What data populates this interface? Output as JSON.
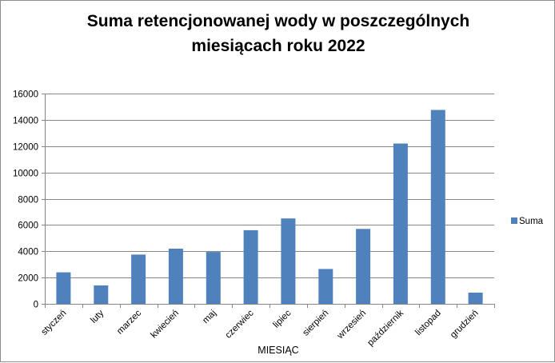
{
  "chart_data": {
    "type": "bar",
    "title": "Suma retencjonowanej wody w poszczególnych miesiącach roku 2022",
    "title_lines": [
      "Suma retencjonowanej wody w poszczególnych",
      "miesiącach roku 2022"
    ],
    "xlabel": "MIESIĄC",
    "ylabel": "",
    "categories": [
      "styczeń",
      "luty",
      "marzec",
      "kwiecień",
      "maj",
      "czerwiec",
      "lipiec",
      "sierpień",
      "wrzesień",
      "październik",
      "listopad",
      "grudzień"
    ],
    "series": [
      {
        "name": "Suma",
        "color": "#4f81bd",
        "values": [
          2400,
          1400,
          3750,
          4200,
          3950,
          5600,
          6500,
          2650,
          5700,
          12200,
          14750,
          850
        ]
      }
    ],
    "ylim": [
      0,
      16000
    ],
    "yticks": [
      "0",
      "2000",
      "4000",
      "6000",
      "8000",
      "10000",
      "12000",
      "14000",
      "16000"
    ],
    "grid": true,
    "legend_position": "right"
  }
}
